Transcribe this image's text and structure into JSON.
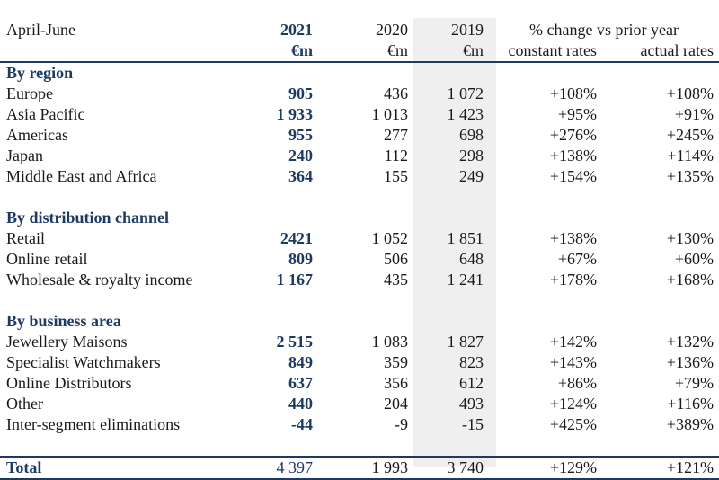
{
  "header": {
    "period": "April-June",
    "col_2021": "2021",
    "col_2020": "2020",
    "col_2019": "2019",
    "change_title": "% change vs prior year",
    "unit": "€m",
    "sub_constant": "constant rates",
    "sub_actual": "actual rates"
  },
  "sections": [
    {
      "title": "By region",
      "rows": [
        {
          "label": "Europe",
          "v2021": "905",
          "v2020": "436",
          "v2019": "1 072",
          "constant": "+108%",
          "actual": "+108%"
        },
        {
          "label": "Asia Pacific",
          "v2021": "1 933",
          "v2020": "1 013",
          "v2019": "1 423",
          "constant": "+95%",
          "actual": "+91%"
        },
        {
          "label": "Americas",
          "v2021": "955",
          "v2020": "277",
          "v2019": "698",
          "constant": "+276%",
          "actual": "+245%"
        },
        {
          "label": "Japan",
          "v2021": "240",
          "v2020": "112",
          "v2019": "298",
          "constant": "+138%",
          "actual": "+114%"
        },
        {
          "label": "Middle East and Africa",
          "v2021": "364",
          "v2020": "155",
          "v2019": "249",
          "constant": "+154%",
          "actual": "+135%"
        }
      ]
    },
    {
      "title": "By distribution channel",
      "rows": [
        {
          "label": "Retail",
          "v2021": "2421",
          "v2020": "1 052",
          "v2019": "1 851",
          "constant": "+138%",
          "actual": "+130%"
        },
        {
          "label": "Online retail",
          "v2021": "809",
          "v2020": "506",
          "v2019": "648",
          "constant": "+67%",
          "actual": "+60%"
        },
        {
          "label": "Wholesale & royalty income",
          "v2021": "1 167",
          "v2020": "435",
          "v2019": "1 241",
          "constant": "+178%",
          "actual": "+168%"
        }
      ]
    },
    {
      "title": "By business area",
      "rows": [
        {
          "label": "Jewellery Maisons",
          "v2021": "2 515",
          "v2020": "1 083",
          "v2019": "1 827",
          "constant": "+142%",
          "actual": "+132%"
        },
        {
          "label": "Specialist Watchmakers",
          "v2021": "849",
          "v2020": "359",
          "v2019": "823",
          "constant": "+143%",
          "actual": "+136%"
        },
        {
          "label": "Online Distributors",
          "v2021": "637",
          "v2020": "356",
          "v2019": "612",
          "constant": "+86%",
          "actual": "+79%"
        },
        {
          "label": "Other",
          "v2021": "440",
          "v2020": "204",
          "v2019": "493",
          "constant": "+124%",
          "actual": "+116%"
        },
        {
          "label": "Inter-segment eliminations",
          "v2021": "-44",
          "v2020": "-9",
          "v2019": "-15",
          "constant": "+425%",
          "actual": "+389%"
        }
      ]
    }
  ],
  "total": {
    "label": "Total",
    "v2021": "4 397",
    "v2020": "1 993",
    "v2019": "3 740",
    "constant": "+129%",
    "actual": "+121%"
  }
}
